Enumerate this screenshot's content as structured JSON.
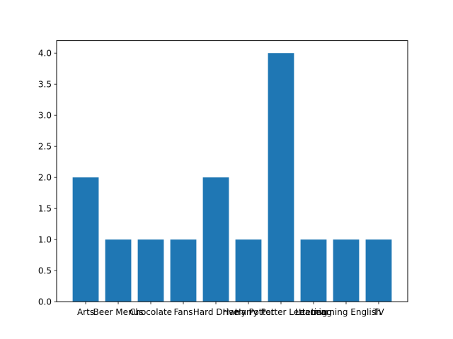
{
  "chart_data": {
    "type": "bar",
    "categories": [
      "Arts",
      "Beer Menus",
      "Chocolate",
      "Fans",
      "Hard Drive",
      "Harry Potter",
      "Harry Potter Lettering",
      "Learning",
      "Learning English",
      "TV"
    ],
    "values": [
      2,
      1,
      1,
      1,
      2,
      1,
      4,
      1,
      1,
      1
    ],
    "title": "",
    "xlabel": "",
    "ylabel": "",
    "ylim": [
      0,
      4.2
    ],
    "yticks": [
      "0.0",
      "0.5",
      "1.0",
      "1.5",
      "2.0",
      "2.5",
      "3.0",
      "3.5",
      "4.0"
    ],
    "grid": false,
    "bar_color": "#1f77b4"
  }
}
